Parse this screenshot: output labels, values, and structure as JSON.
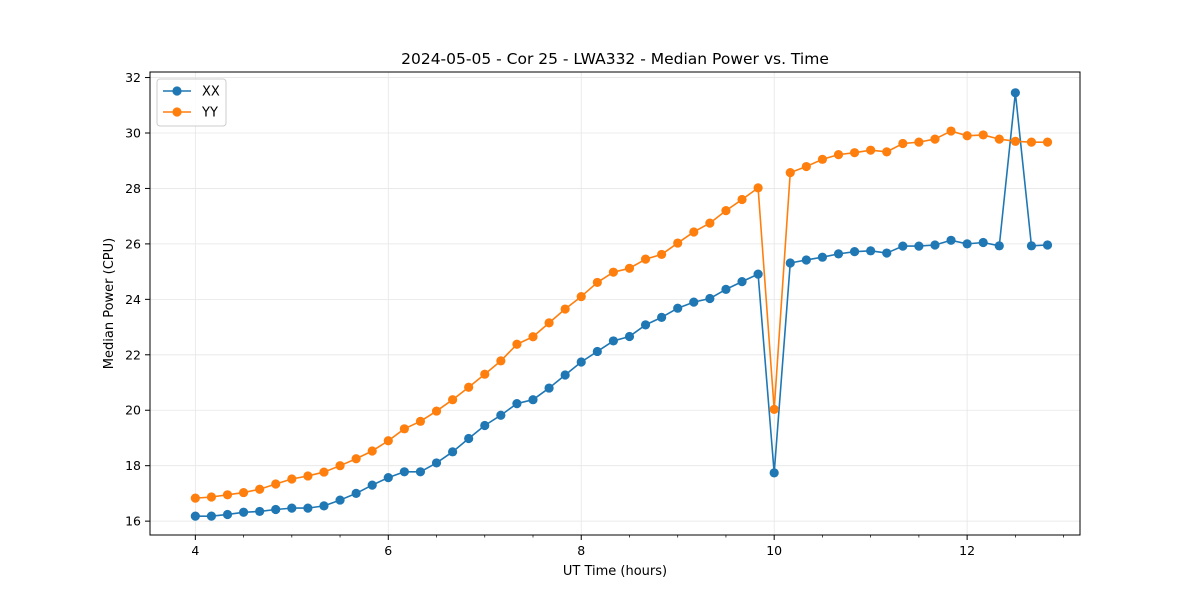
{
  "chart_data": {
    "type": "line",
    "title": "2024-05-05 - Cor 25 - LWA332 - Median Power vs. Time",
    "xlabel": "UT Time (hours)",
    "ylabel": "Median Power (CPU)",
    "xlim": [
      3.53,
      13.17
    ],
    "ylim": [
      15.5,
      32.2
    ],
    "xticks": [
      4,
      6,
      8,
      10,
      12
    ],
    "xtick_labels": [
      "4",
      "6",
      "8",
      "10",
      "12"
    ],
    "yticks": [
      16,
      18,
      20,
      22,
      24,
      26,
      28,
      30,
      32
    ],
    "ytick_labels": [
      "16",
      "18",
      "20",
      "22",
      "24",
      "26",
      "28",
      "30",
      "32"
    ],
    "grid": true,
    "legend_placement": "top-left",
    "x": [
      4.0,
      4.1667,
      4.3333,
      4.5,
      4.6667,
      4.8333,
      5.0,
      5.1667,
      5.3333,
      5.5,
      5.6667,
      5.8333,
      6.0,
      6.1667,
      6.3333,
      6.5,
      6.6667,
      6.8333,
      7.0,
      7.1667,
      7.3333,
      7.5,
      7.6667,
      7.8333,
      8.0,
      8.1667,
      8.3333,
      8.5,
      8.6667,
      8.8333,
      9.0,
      9.1667,
      9.3333,
      9.5,
      9.6667,
      9.8333,
      10.0,
      10.1667,
      10.3333,
      10.5,
      10.6667,
      10.8333,
      11.0,
      11.1667,
      11.3333,
      11.5,
      11.6667,
      11.8333,
      12.0,
      12.1667,
      12.3333,
      12.5,
      12.6667,
      12.8333
    ],
    "series": [
      {
        "name": "XX",
        "color": "#1f77b4",
        "values": [
          16.18,
          16.18,
          16.24,
          16.32,
          16.35,
          16.42,
          16.47,
          16.47,
          16.55,
          16.76,
          17.0,
          17.3,
          17.57,
          17.78,
          17.78,
          18.1,
          18.5,
          18.98,
          19.45,
          19.82,
          20.24,
          20.38,
          20.8,
          21.27,
          21.74,
          22.12,
          22.5,
          22.66,
          23.08,
          23.35,
          23.68,
          23.9,
          24.03,
          24.36,
          24.64,
          24.91,
          17.74,
          25.31,
          25.42,
          25.52,
          25.64,
          25.72,
          25.75,
          25.67,
          25.92,
          25.92,
          25.96,
          26.13,
          26.0,
          26.05,
          25.93,
          31.45,
          25.93,
          25.96
        ]
      },
      {
        "name": "YY",
        "color": "#ff7f0e",
        "values": [
          16.83,
          16.87,
          16.95,
          17.03,
          17.15,
          17.34,
          17.52,
          17.63,
          17.77,
          18.0,
          18.25,
          18.53,
          18.9,
          19.33,
          19.6,
          19.97,
          20.38,
          20.83,
          21.3,
          21.78,
          22.38,
          22.65,
          23.15,
          23.65,
          24.1,
          24.61,
          24.98,
          25.12,
          25.45,
          25.62,
          26.03,
          26.43,
          26.75,
          27.2,
          27.6,
          28.02,
          20.03,
          28.57,
          28.79,
          29.05,
          29.22,
          29.29,
          29.38,
          29.32,
          29.62,
          29.67,
          29.78,
          30.07,
          29.9,
          29.93,
          29.78,
          29.7,
          29.67,
          29.67
        ]
      }
    ]
  }
}
